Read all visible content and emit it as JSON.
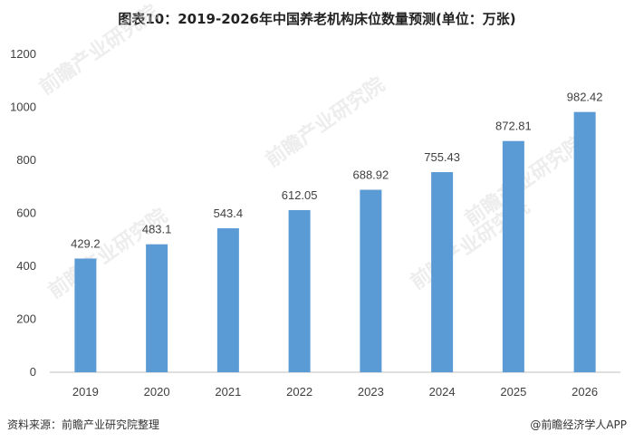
{
  "header": {
    "title": "图表10：2019-2026年中国养老机构床位数量预测(单位：万张)"
  },
  "footer": {
    "source": "资料来源：前瞻产业研究院整理",
    "brand": "@前瞻经济学人APP"
  },
  "watermark": {
    "text": "前瞻产业研究院"
  },
  "colors": {
    "bar": "#5B9BD5",
    "axis": "#BFBFBF",
    "text": "#404040"
  },
  "chart_data": {
    "type": "bar",
    "title": "图表10：2019-2026年中国养老机构床位数量预测(单位：万张)",
    "categories": [
      "2019",
      "2020",
      "2021",
      "2022",
      "2023",
      "2024",
      "2025",
      "2026"
    ],
    "values": [
      429.2,
      483.1,
      543.4,
      612.05,
      688.92,
      755.43,
      872.81,
      982.42
    ],
    "value_labels": [
      "429.2",
      "483.1",
      "543.4",
      "612.05",
      "688.92",
      "755.43",
      "872.81",
      "982.42"
    ],
    "yticks": [
      "0",
      "200",
      "400",
      "600",
      "800",
      "1000",
      "1200"
    ],
    "ylim": [
      0,
      1200
    ],
    "xlabel": "",
    "ylabel": "",
    "grid": false,
    "legend": "none"
  }
}
